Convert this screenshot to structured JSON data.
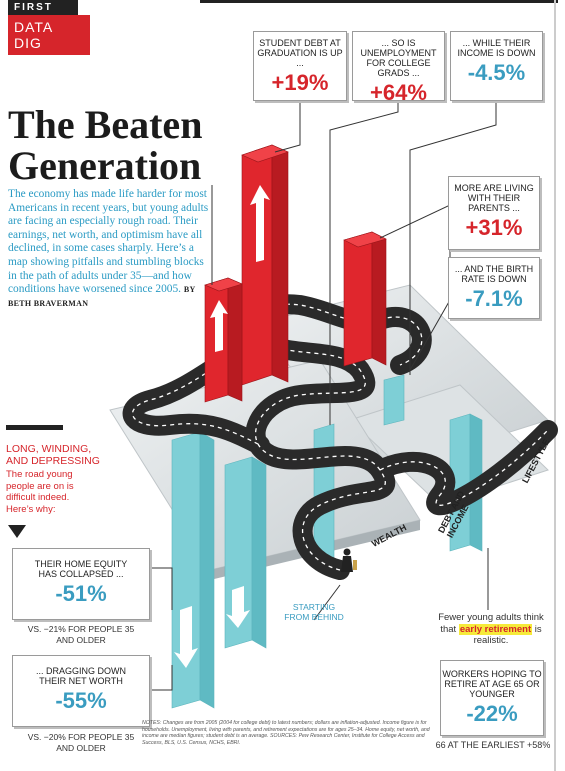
{
  "header": {
    "kicker": "FIRST",
    "section": "DATA DIG"
  },
  "title_line1": "The Beaten",
  "title_line2": "Generation",
  "intro": "The economy has made life harder for most Americans in recent years, but young adults are facing an especially rough road. Their earnings, net worth, and optimism have all declined, in some cases sharply. Here’s a map showing pitfalls and stumbling blocks in the path of adults under 35—and how conditions have worsened since 2005.",
  "byline": "BY BETH BRAVERMAN",
  "stats": {
    "debt": {
      "label": "STUDENT DEBT AT GRADUATION IS UP ...",
      "value": "+19%"
    },
    "unemployment": {
      "label": "... SO IS UNEMPLOYMENT FOR COLLEGE GRADS ...",
      "value": "+64%"
    },
    "income": {
      "label": "... WHILE THEIR INCOME IS DOWN",
      "value": "-4.5%"
    },
    "parents": {
      "label": "MORE ARE LIVING WITH THEIR PARENTS ...",
      "value": "+31%"
    },
    "birth": {
      "label": "... AND THE BIRTH RATE IS DOWN",
      "value": "-7.1%"
    },
    "equity": {
      "label": "THEIR HOME EQUITY HAS COLLAPSED ...",
      "value": "-51%",
      "vs": "VS. −21% FOR PEOPLE 35 AND OLDER"
    },
    "networth": {
      "label": "... DRAGGING DOWN THEIR NET WORTH",
      "value": "-55%",
      "vs": "VS. −20% FOR PEOPLE 35 AND OLDER"
    },
    "retire": {
      "label": "WORKERS HOPING TO RETIRE AT AGE 65 OR YOUNGER",
      "value": "-22%",
      "foot": "66 AT THE EARLIEST +58%"
    }
  },
  "lwd": {
    "title_line1": "LONG, WINDING,",
    "title_line2": "AND DEPRESSING",
    "sub": "The road young people are on is difficult indeed. Here’s why:"
  },
  "fewer": {
    "before": "Fewer young adults think that ",
    "highlight": "early retirement",
    "after": " is realistic."
  },
  "start": "STARTING FROM BEHIND",
  "axis": {
    "wealth": "WEALTH",
    "debt_income": "DEBT AND INCOME",
    "lifestyle": "LIFESTYLE"
  },
  "notes": "NOTES: Changes are from 2005 (2004 for college debt) to latest numbers; dollars are inflation-adjusted. Income figure is for households. Unemployment, living with parents, and retirement expectations are for ages 25–34. Home equity, net worth, and income are median figures; student debt is an average. SOURCES: Pew Research Center, Institute for College Access and Success, BLS, U.S. Census, NCHS, EBRI.",
  "colors": {
    "red": "#d6252b",
    "teal": "#3a9cc0",
    "road": "#2a2a2a",
    "intro_blue": "#2b9bc4"
  }
}
